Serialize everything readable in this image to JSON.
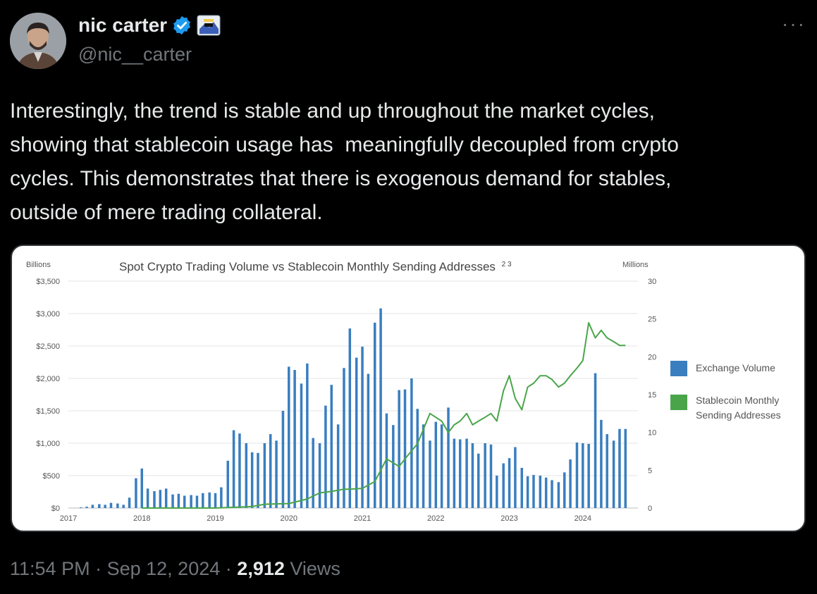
{
  "author": {
    "name": "nic carter",
    "handle": "@nic__carter",
    "verified_badge_color": "#1d9bf0"
  },
  "more_menu_label": "···",
  "tweet": {
    "text": "Interestingly, the trend is stable and up throughout the market cycles,\nshowing that stablecoin usage has  meaningfully decoupled from crypto\ncycles. This demonstrates that there is exogenous demand for stables,\noutside of mere trading collateral."
  },
  "meta": {
    "time": "11:54 PM",
    "separator": "·",
    "date": "Sep 12, 2024",
    "views_count": "2,912",
    "views_label": "Views"
  },
  "chart_data": {
    "type": "bar",
    "title": "Spot Crypto Trading Volume vs Stablecoin Monthly Sending Addresses",
    "title_superscript": "2 3",
    "left_unit": "Billions",
    "right_unit": "Millions",
    "left_ticks": [
      "$3,500",
      "$3,000",
      "$2,500",
      "$2,000",
      "$1,500",
      "$1,000",
      "$500",
      "$0"
    ],
    "left_tick_values": [
      3500,
      3000,
      2500,
      2000,
      1500,
      1000,
      500,
      0
    ],
    "right_ticks": [
      "30",
      "25",
      "20",
      "15",
      "10",
      "5",
      "0"
    ],
    "right_tick_values": [
      30,
      25,
      20,
      15,
      10,
      5,
      0
    ],
    "x_labels": [
      "2017",
      "2018",
      "2019",
      "2020",
      "2021",
      "2022",
      "2023",
      "2024"
    ],
    "x_label_values": [
      2017,
      2018,
      2019,
      2020,
      2021,
      2022,
      2023,
      2024
    ],
    "ylim_left": [
      0,
      3500
    ],
    "ylim_right": [
      0,
      30
    ],
    "xlim": [
      2017,
      2024.75
    ],
    "grid": true,
    "legend_position": "right",
    "colors": {
      "bars": "#3a7ebf",
      "line": "#4aa54a"
    },
    "series": [
      {
        "name": "Exchange Volume",
        "axis": "left",
        "type": "bar",
        "x": [
          2017.17,
          2017.25,
          2017.33,
          2017.42,
          2017.5,
          2017.58,
          2017.67,
          2017.75,
          2017.83,
          2017.92,
          2018.0,
          2018.08,
          2018.17,
          2018.25,
          2018.33,
          2018.42,
          2018.5,
          2018.58,
          2018.67,
          2018.75,
          2018.83,
          2018.92,
          2019.0,
          2019.08,
          2019.17,
          2019.25,
          2019.33,
          2019.42,
          2019.5,
          2019.58,
          2019.67,
          2019.75,
          2019.83,
          2019.92,
          2020.0,
          2020.08,
          2020.17,
          2020.25,
          2020.33,
          2020.42,
          2020.5,
          2020.58,
          2020.67,
          2020.75,
          2020.83,
          2020.92,
          2021.0,
          2021.08,
          2021.17,
          2021.25,
          2021.33,
          2021.42,
          2021.5,
          2021.58,
          2021.67,
          2021.75,
          2021.83,
          2021.92,
          2022.0,
          2022.08,
          2022.17,
          2022.25,
          2022.33,
          2022.42,
          2022.5,
          2022.58,
          2022.67,
          2022.75,
          2022.83,
          2022.92,
          2023.0,
          2023.08,
          2023.17,
          2023.25,
          2023.33,
          2023.42,
          2023.5,
          2023.58,
          2023.67,
          2023.75,
          2023.83,
          2023.92,
          2024.0,
          2024.08,
          2024.17,
          2024.25,
          2024.33,
          2024.42,
          2024.5,
          2024.58
        ],
        "values": [
          10,
          20,
          50,
          60,
          50,
          80,
          70,
          50,
          160,
          460,
          610,
          300,
          260,
          280,
          300,
          210,
          220,
          190,
          200,
          190,
          230,
          240,
          230,
          320,
          730,
          1200,
          1150,
          1000,
          860,
          850,
          1000,
          1140,
          1040,
          1500,
          2180,
          2130,
          1920,
          2230,
          1080,
          1000,
          1580,
          1900,
          1290,
          2160,
          2770,
          2320,
          2490,
          2070,
          2860,
          3080,
          1460,
          1280,
          1820,
          1830,
          2000,
          1530,
          1290,
          1040,
          1330,
          1290,
          1550,
          1070,
          1060,
          1070,
          1000,
          840,
          1000,
          980,
          500,
          690,
          770,
          940,
          620,
          490,
          510,
          500,
          470,
          430,
          400,
          550,
          750,
          1010,
          1000,
          990,
          2080,
          1360,
          1140,
          1040,
          1220,
          1220
        ]
      },
      {
        "name": "Stablecoin Monthly Sending Addresses",
        "axis": "right",
        "type": "line",
        "x": [
          2018.0,
          2019.0,
          2019.5,
          2019.67,
          2020.0,
          2020.25,
          2020.42,
          2020.58,
          2020.75,
          2020.83,
          2021.0,
          2021.17,
          2021.33,
          2021.5,
          2021.58,
          2021.75,
          2021.92,
          2022.08,
          2022.17,
          2022.25,
          2022.33,
          2022.42,
          2022.5,
          2022.58,
          2022.67,
          2022.75,
          2022.83,
          2022.92,
          2023.0,
          2023.08,
          2023.17,
          2023.25,
          2023.33,
          2023.42,
          2023.5,
          2023.58,
          2023.67,
          2023.75,
          2023.83,
          2023.92,
          2024.0,
          2024.08,
          2024.17,
          2024.25,
          2024.33,
          2024.42,
          2024.5,
          2024.58
        ],
        "values": [
          0,
          0,
          0.2,
          0.5,
          0.6,
          1.2,
          2.0,
          2.2,
          2.5,
          2.5,
          2.6,
          3.5,
          6.5,
          5.5,
          6.5,
          8.5,
          12.5,
          11.5,
          10.0,
          11.0,
          11.5,
          12.5,
          11.0,
          11.5,
          12.0,
          12.5,
          11.5,
          15.5,
          17.5,
          14.5,
          13.0,
          16.0,
          16.5,
          17.5,
          17.5,
          17.0,
          16.0,
          16.5,
          17.5,
          18.5,
          19.5,
          24.5,
          22.5,
          23.5,
          22.5,
          22.0,
          21.5,
          21.5
        ]
      }
    ]
  }
}
